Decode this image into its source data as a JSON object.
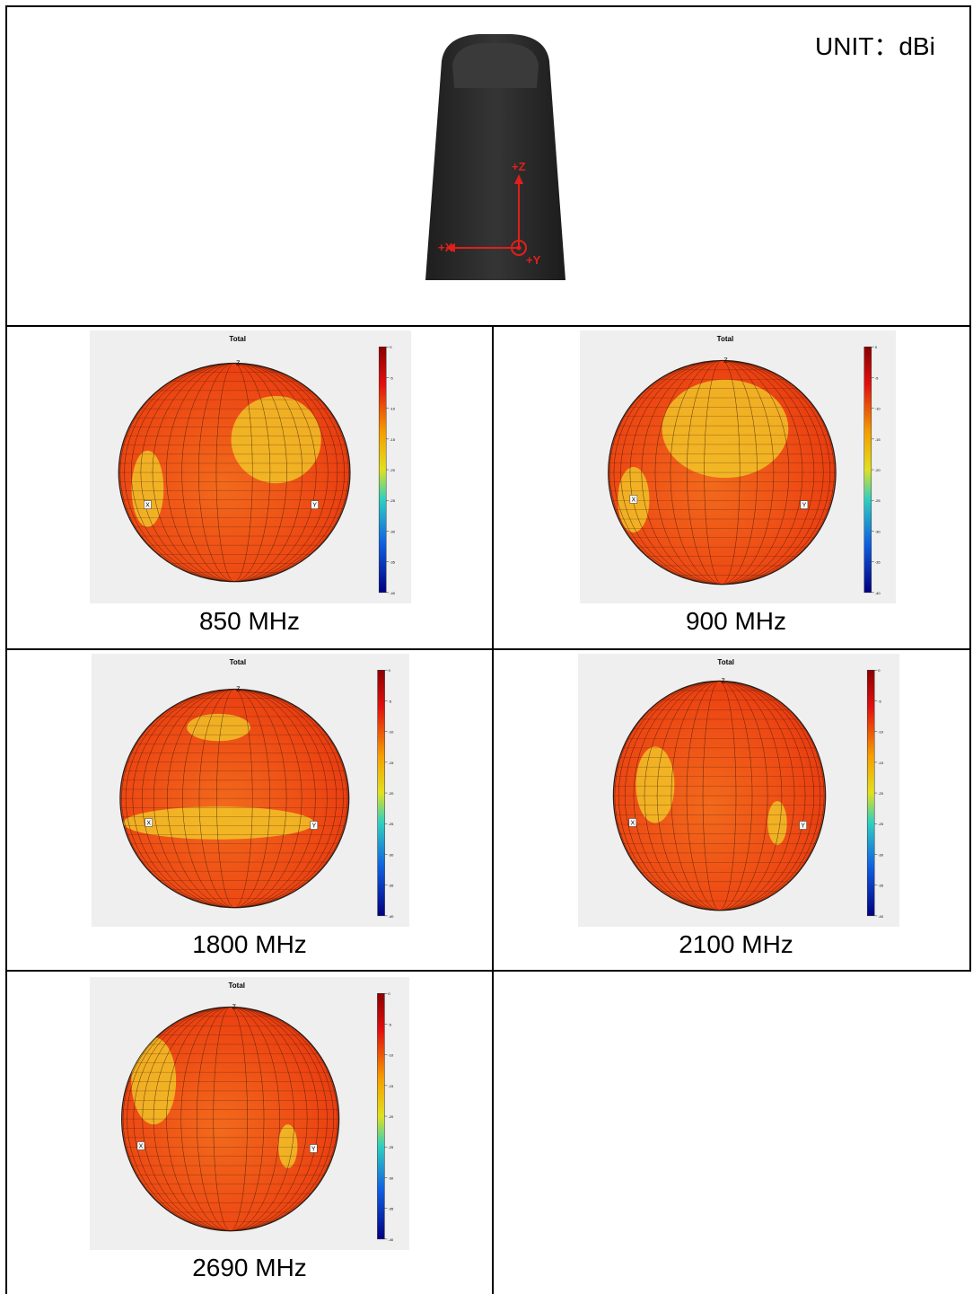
{
  "header": {
    "unit_label": "UNIT：dBi",
    "axes": {
      "z": "+Z",
      "x": "+X",
      "y": "+Y"
    }
  },
  "colors": {
    "antenna_body": "#2b2b2b",
    "axis_marks": "#e0201a",
    "pattern_main": "#f05a1a",
    "pattern_yellow": "#f2d22a"
  },
  "pattern_title": "Total",
  "axis_markers": {
    "z": "Z",
    "x": "X",
    "y": "Y"
  },
  "patterns": [
    {
      "caption": "850 MHz",
      "scale_ticks": [
        "0",
        "-5",
        "-10",
        "-15",
        "-20",
        "-25",
        "-30",
        "-35",
        "-40"
      ]
    },
    {
      "caption": "900 MHz",
      "scale_ticks": [
        "0",
        "-5",
        "-10",
        "-15",
        "-20",
        "-25",
        "-30",
        "-35",
        "-40"
      ]
    },
    {
      "caption": "1800 MHz",
      "scale_ticks": [
        "0",
        "-5",
        "-10",
        "-15",
        "-20",
        "-25",
        "-30",
        "-35",
        "-40"
      ]
    },
    {
      "caption": "2100 MHz",
      "scale_ticks": [
        "0",
        "-5",
        "-10",
        "-15",
        "-20",
        "-25",
        "-30",
        "-35",
        "-40"
      ]
    },
    {
      "caption": "2690 MHz",
      "scale_ticks": [
        "0",
        "-5",
        "-10",
        "-15",
        "-20",
        "-25",
        "-30",
        "-35",
        "-40"
      ]
    }
  ]
}
